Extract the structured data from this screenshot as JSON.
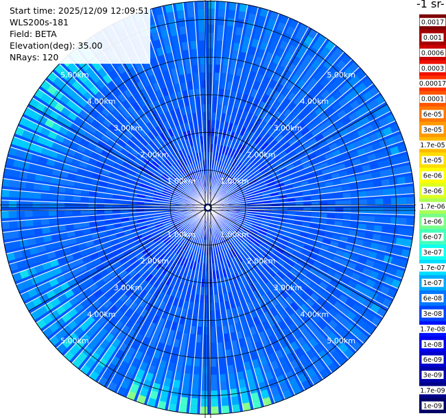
{
  "info": {
    "start_time": "Start time: 2025/12/09 12:09:51",
    "instrument": "WLS200s-181",
    "field": "Field: BETA",
    "elevation": "Elevation(deg): 35.00",
    "nrays": "NRays: 120"
  },
  "colorbar": {
    "title": "-1 sr-",
    "labels": [
      "0.0017",
      "0.001",
      "0.0006",
      "0.0003",
      "0.00017",
      "0.0001",
      "6e-05",
      "3e-05",
      "1.7e-05",
      "1e-05",
      "6e-06",
      "3e-06",
      "1.7e-06",
      "1e-06",
      "6e-07",
      "3e-07",
      "1.7e-07",
      "1e-07",
      "6e-08",
      "3e-08",
      "1.7e-08",
      "1e-08",
      "6e-09",
      "3e-09",
      "1.7e-09",
      "1e-09"
    ],
    "colors": [
      "#7f0000",
      "#a50000",
      "#cc0000",
      "#ee1100",
      "#ff3300",
      "#ff5500",
      "#ff7700",
      "#ff9900",
      "#ffbb00",
      "#ffdd00",
      "#ffff00",
      "#ddff22",
      "#aaff55",
      "#77ff88",
      "#44ffbb",
      "#11ffee",
      "#00ddff",
      "#00aaff",
      "#0077ff",
      "#0044ff",
      "#0011ff",
      "#0000ee",
      "#0000cc",
      "#0000aa",
      "#000088",
      "#000066"
    ]
  },
  "chart_data": {
    "type": "heatmap",
    "projection": "polar-ppi",
    "field": "BETA",
    "elevation_deg": 35.0,
    "n_rays": 120,
    "range_rings_km": [
      1,
      2,
      3,
      4,
      5
    ],
    "ring_labels": [
      "1.00km",
      "2.00km",
      "3.00km",
      "4.00km",
      "5.00km"
    ],
    "max_range_km": 5.5,
    "azimuth_grid_deg": [
      0,
      30,
      60,
      90,
      120,
      150,
      180,
      210,
      240,
      270,
      300,
      330
    ],
    "value_scale": "log",
    "value_range": [
      1e-09,
      0.0017
    ],
    "dominant_value_range": [
      1e-08,
      1e-07
    ],
    "far_range_enhanced_sectors": [
      "north-west",
      "south",
      "south-west"
    ]
  }
}
